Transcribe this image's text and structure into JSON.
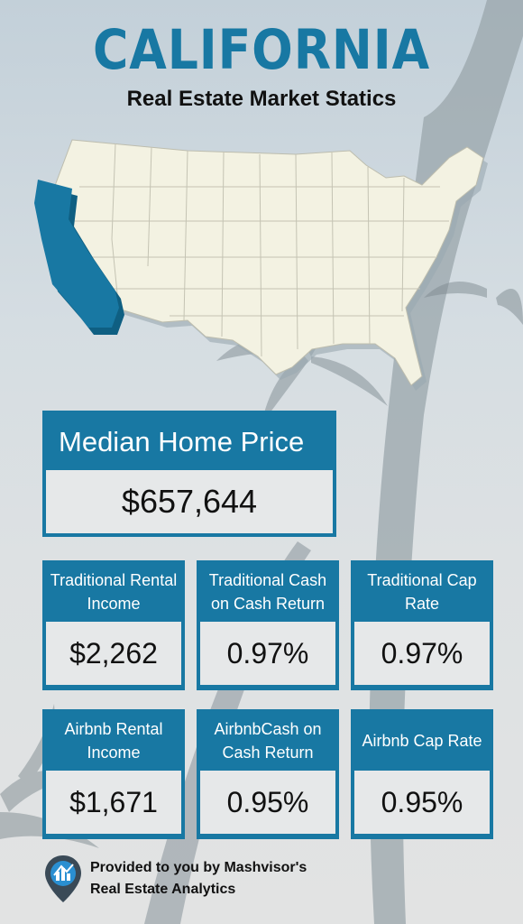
{
  "header": {
    "title": "CALIFORNIA",
    "subtitle": "Real Estate Market Statics"
  },
  "colors": {
    "accent": "#1878a3",
    "map_fill": "#f3f2e2",
    "highlight_state": "#1878a3",
    "value_box": "#e6e8e9"
  },
  "map": {
    "icon": "usa-map-california-highlighted"
  },
  "median": {
    "label": "Median Home Price",
    "value": "$657,644"
  },
  "stats": [
    {
      "label": "Traditional Rental Income",
      "value": "$2,262"
    },
    {
      "label": "Traditional Cash on Cash Return",
      "value": "0.97%"
    },
    {
      "label": "Traditional Cap Rate",
      "value": "0.97%"
    },
    {
      "label": "Airbnb Rental Income",
      "value": "$1,671"
    },
    {
      "label": "AirbnbCash on Cash Return",
      "value": "0.95%"
    },
    {
      "label": "Airbnb Cap Rate",
      "value": "0.95%"
    }
  ],
  "footer": {
    "line1": "Provided to you by Mashvisor's",
    "line2": "Real Estate Analytics",
    "logo_icon": "mashvisor-pin-logo-icon"
  }
}
